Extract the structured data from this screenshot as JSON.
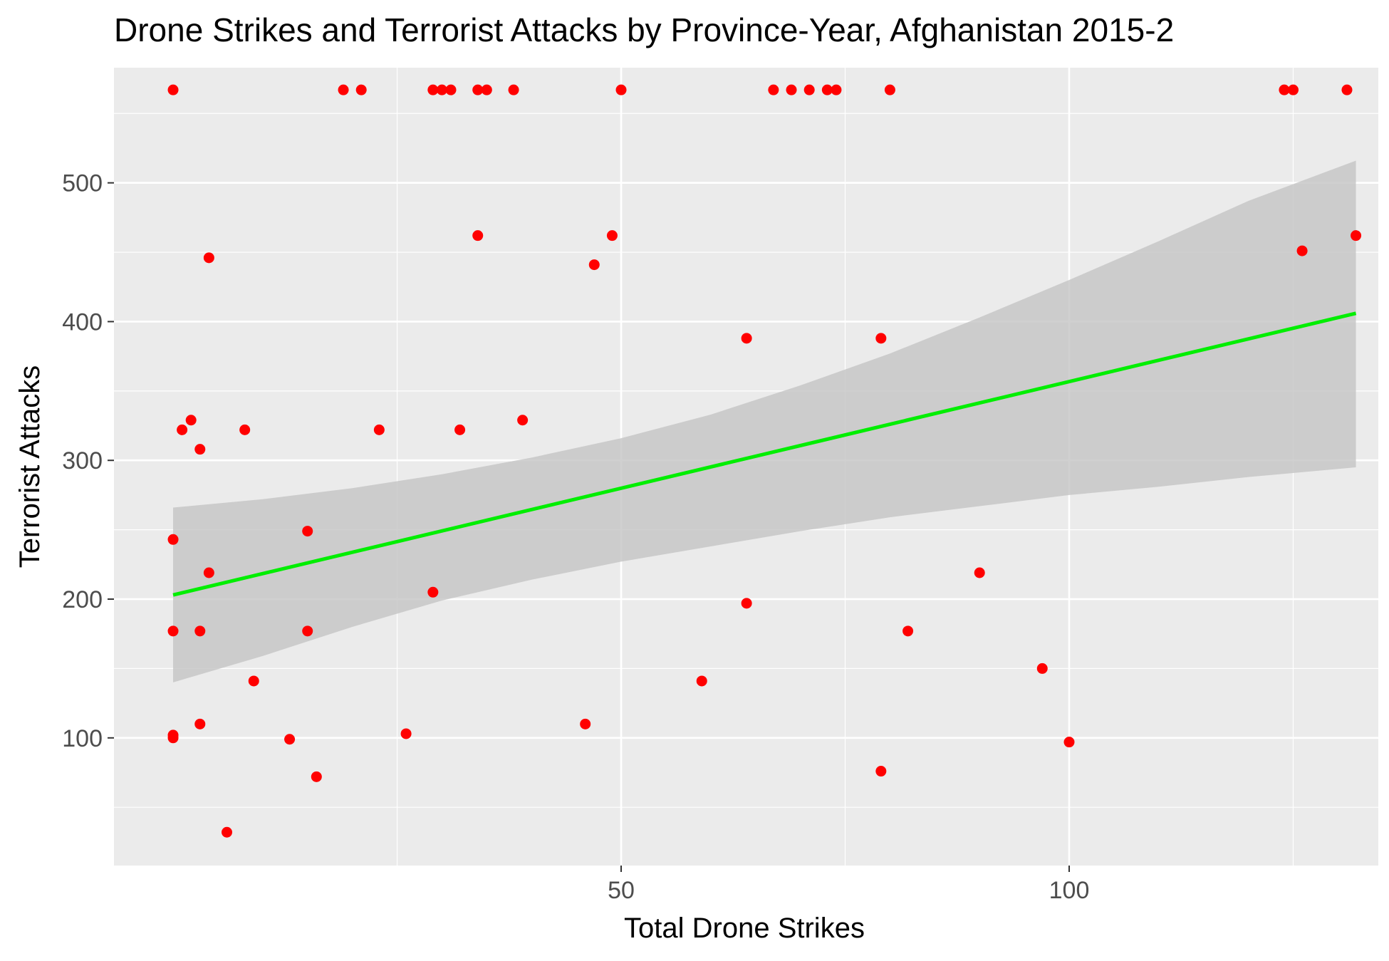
{
  "chart_data": {
    "type": "scatter",
    "title": "Drone Strikes and Terrorist Attacks by Province-Year, Afghanistan 2015-2",
    "xlabel": "Total Drone Strikes",
    "ylabel": "Terrorist Attacks",
    "xlim": [
      -6.6,
      134.5
    ],
    "ylim": [
      8,
      583
    ],
    "x_ticks": [
      50,
      100
    ],
    "y_ticks": [
      100,
      200,
      300,
      400,
      500
    ],
    "grid": true,
    "legend": "none",
    "colors": {
      "panel": "#ebebeb",
      "grid": "#ffffff",
      "points": "#ff0000",
      "fit_line": "#00ee00",
      "ci_band": "#c4c4c4",
      "text": "#000000",
      "tick_text": "#4d4d4d",
      "tick_marks": "#333333"
    },
    "points": [
      {
        "x": 0,
        "y": 567
      },
      {
        "x": 19,
        "y": 567
      },
      {
        "x": 21,
        "y": 567
      },
      {
        "x": 29,
        "y": 567
      },
      {
        "x": 30,
        "y": 567
      },
      {
        "x": 31,
        "y": 567
      },
      {
        "x": 34,
        "y": 567
      },
      {
        "x": 35,
        "y": 567
      },
      {
        "x": 38,
        "y": 567
      },
      {
        "x": 50,
        "y": 567
      },
      {
        "x": 67,
        "y": 567
      },
      {
        "x": 69,
        "y": 567
      },
      {
        "x": 71,
        "y": 567
      },
      {
        "x": 73,
        "y": 567
      },
      {
        "x": 74,
        "y": 567
      },
      {
        "x": 80,
        "y": 567
      },
      {
        "x": 124,
        "y": 567
      },
      {
        "x": 131,
        "y": 567
      },
      {
        "x": 34,
        "y": 462
      },
      {
        "x": 49,
        "y": 462
      },
      {
        "x": 4,
        "y": 446
      },
      {
        "x": 47,
        "y": 441
      },
      {
        "x": 64,
        "y": 388
      },
      {
        "x": 79,
        "y": 388
      },
      {
        "x": 2,
        "y": 329
      },
      {
        "x": 39,
        "y": 329
      },
      {
        "x": 1,
        "y": 322
      },
      {
        "x": 8,
        "y": 322
      },
      {
        "x": 23,
        "y": 322
      },
      {
        "x": 32,
        "y": 322
      },
      {
        "x": 3,
        "y": 308
      },
      {
        "x": 15,
        "y": 249
      },
      {
        "x": 0,
        "y": 243
      },
      {
        "x": 4,
        "y": 219
      },
      {
        "x": 90,
        "y": 219
      },
      {
        "x": 29,
        "y": 205
      },
      {
        "x": 64,
        "y": 197
      },
      {
        "x": 0,
        "y": 177
      },
      {
        "x": 3,
        "y": 177
      },
      {
        "x": 15,
        "y": 177
      },
      {
        "x": 82,
        "y": 177
      },
      {
        "x": 97,
        "y": 150
      },
      {
        "x": 9,
        "y": 141
      },
      {
        "x": 59,
        "y": 141
      },
      {
        "x": 3,
        "y": 110
      },
      {
        "x": 46,
        "y": 110
      },
      {
        "x": 26,
        "y": 103
      },
      {
        "x": 0,
        "y": 102
      },
      {
        "x": 0,
        "y": 100
      },
      {
        "x": 13,
        "y": 99
      },
      {
        "x": 100,
        "y": 97
      },
      {
        "x": 79,
        "y": 76
      },
      {
        "x": 16,
        "y": 72
      },
      {
        "x": 6,
        "y": 32
      },
      {
        "x": 125,
        "y": 567
      },
      {
        "x": 126,
        "y": 451
      },
      {
        "x": 132,
        "y": 462
      }
    ],
    "fit_line": {
      "x": [
        0,
        132
      ],
      "y": [
        203,
        406
      ]
    },
    "ci_band": {
      "x": [
        0,
        10,
        20,
        30,
        40,
        50,
        60,
        70,
        80,
        90,
        100,
        110,
        120,
        132
      ],
      "upper": [
        266,
        272,
        280,
        290,
        302,
        316,
        333,
        354,
        377,
        403,
        430,
        458,
        487,
        516
      ],
      "lower": [
        140,
        159,
        180,
        199,
        214,
        227,
        238,
        249,
        259,
        267,
        275,
        281,
        288,
        295
      ]
    }
  }
}
